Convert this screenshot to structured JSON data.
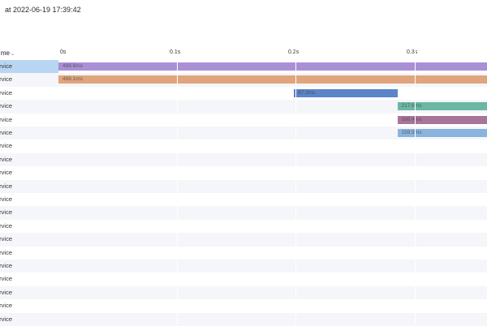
{
  "title": "at 2022-06-19 17:39:42",
  "header": {
    "name_column": "me",
    "sort_icon": "chevron-down-icon",
    "ticks": [
      "0s",
      "0.1s",
      "0.2s",
      "0.3s"
    ]
  },
  "rows": [
    {
      "name": "rvice",
      "selected": true
    },
    {
      "name": "rvice"
    },
    {
      "name": "rvice"
    },
    {
      "name": "rvice"
    },
    {
      "name": "rvice"
    },
    {
      "name": "rvice"
    },
    {
      "name": "rvice"
    },
    {
      "name": "rvice"
    },
    {
      "name": "rvice"
    },
    {
      "name": "rvice"
    },
    {
      "name": "rvice"
    },
    {
      "name": "rvice"
    },
    {
      "name": "rvice"
    },
    {
      "name": "rvice"
    },
    {
      "name": "rvice"
    },
    {
      "name": "rvice"
    },
    {
      "name": "rvice"
    },
    {
      "name": "rvice"
    },
    {
      "name": "rvice"
    },
    {
      "name": "rvice"
    }
  ],
  "spans": [
    {
      "row": 0,
      "start_s": 0.0,
      "duration_label": "488.6ms",
      "duration_s": 0.4886,
      "color": "#a98fd6"
    },
    {
      "row": 1,
      "start_s": 0.0,
      "duration_label": "488.1ms",
      "duration_s": 0.4881,
      "color": "#e0a57c"
    },
    {
      "row": 2,
      "start_s": 0.198,
      "duration_label": "87.3ms",
      "duration_s": 0.0873,
      "color": "#5b84c9"
    },
    {
      "row": 3,
      "start_s": 0.285,
      "duration_label": "217.6ms",
      "duration_s": 0.2176,
      "color": "#6bb7a4"
    },
    {
      "row": 4,
      "start_s": 0.285,
      "duration_label": "160.4ms",
      "duration_s": 0.1604,
      "color": "#a8749a"
    },
    {
      "row": 5,
      "start_s": 0.285,
      "duration_label": "159.9ms",
      "duration_s": 0.1599,
      "color": "#89b4de"
    }
  ],
  "colors": {
    "row_alt": "#f5f6fa",
    "selected": "#b8d6f2"
  }
}
